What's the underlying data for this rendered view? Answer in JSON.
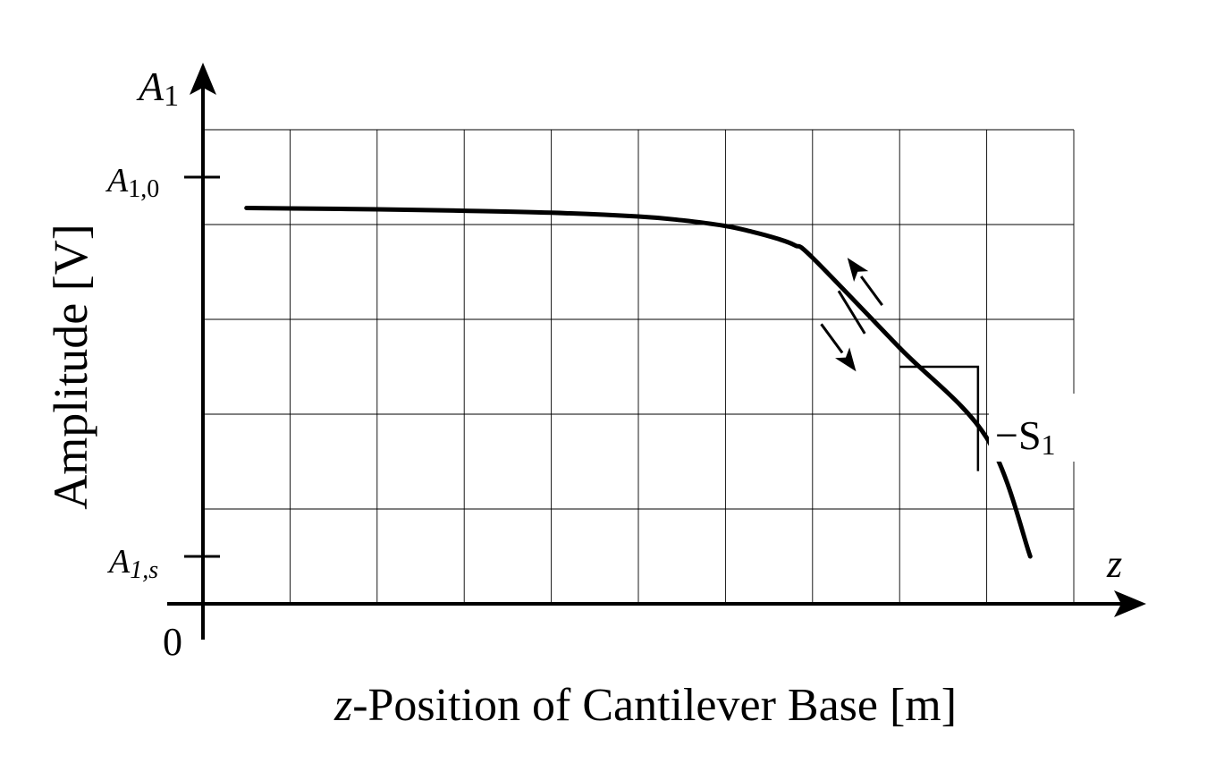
{
  "chart_data": {
    "type": "line",
    "title": "",
    "xlabel_italic": "z",
    "xlabel_rest": "-Position of Cantilever Base [m]",
    "ylabel": "Amplitude [V]",
    "x_axis_symbol": "z",
    "y_axis_symbol": {
      "main": "A",
      "sub": "1"
    },
    "origin_label": "0",
    "y_ticks": [
      {
        "main": "A",
        "sub": "1,0",
        "value": 0.9
      },
      {
        "main": "A",
        "sub": "1,s",
        "value": 0.1
      }
    ],
    "grid": true,
    "grid_columns": 10,
    "grid_rows": 5,
    "xlim": [
      0,
      10
    ],
    "ylim": [
      0,
      1
    ],
    "series": [
      {
        "values_x": [
          0.5,
          1.0,
          2.0,
          3.0,
          4.0,
          5.0,
          5.5,
          6.0,
          6.3,
          6.6,
          6.8,
          7.0,
          8.0,
          9.0,
          9.5
        ],
        "values_y": [
          0.835,
          0.834,
          0.832,
          0.829,
          0.825,
          0.817,
          0.809,
          0.797,
          0.785,
          0.77,
          0.756,
          0.73,
          0.54,
          0.35,
          0.1
        ]
      }
    ],
    "annotations": {
      "slope_label": "−S",
      "slope_sub": "1",
      "slope_triangle": {
        "x0": 8.0,
        "x1": 8.9,
        "y_top": 0.5,
        "y_bottom": 0.28
      },
      "arrow_up": {
        "from": [
          7.8,
          0.63
        ],
        "to": [
          7.4,
          0.73
        ]
      },
      "arrow_down": {
        "from": [
          7.1,
          0.59
        ],
        "to": [
          7.5,
          0.49
        ]
      },
      "bracket": {
        "from": [
          7.3,
          0.66
        ],
        "to": [
          7.6,
          0.57
        ]
      }
    }
  }
}
